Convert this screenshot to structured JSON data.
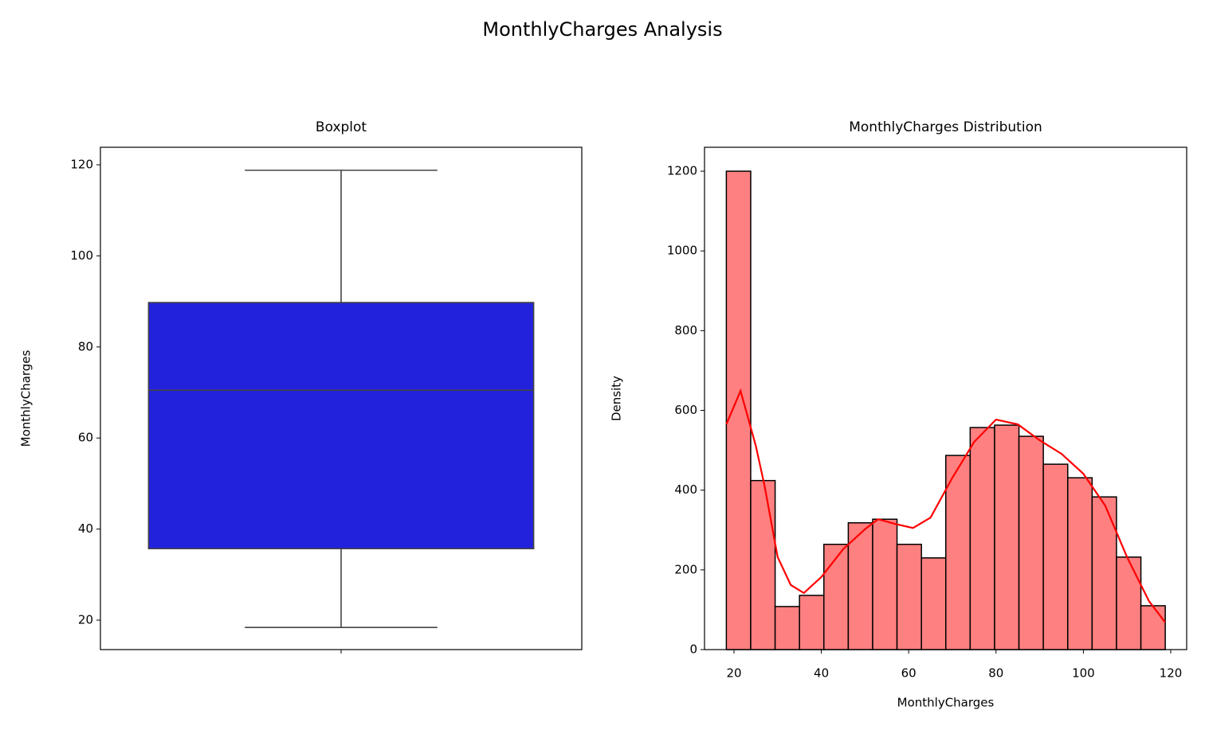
{
  "title": "MonthlyCharges Analysis",
  "chart_data": [
    {
      "type": "box",
      "title": "Boxplot",
      "ylabel": "MonthlyCharges",
      "categories": [
        null
      ],
      "whislo": [
        18.4
      ],
      "q1": [
        35.7
      ],
      "med": [
        70.5
      ],
      "q3": [
        89.75
      ],
      "whishi": [
        118.8
      ],
      "color": "#2222dd",
      "ylim": [
        13.53,
        123.85
      ],
      "yticks": [
        20,
        40,
        60,
        80,
        100,
        120
      ]
    },
    {
      "type": "histogram",
      "title": "MonthlyCharges Distribution",
      "xlabel": "MonthlyCharges",
      "ylabel": "Density",
      "bins": [
        18.25,
        23.83,
        29.42,
        35.0,
        40.58,
        46.17,
        51.75,
        57.33,
        62.92,
        68.5,
        74.08,
        79.67,
        85.25,
        90.83,
        96.42,
        102.0,
        107.58,
        113.17,
        118.75
      ],
      "values": [
        1200,
        424,
        108,
        136,
        264,
        318,
        327,
        264,
        230,
        487,
        557,
        563,
        535,
        465,
        431,
        383,
        232,
        110
      ],
      "color": "#ff8080",
      "edgecolor": "#000000",
      "kde": {
        "color": "#ff0000",
        "x": [
          18.25,
          21.5,
          25,
          27,
          30,
          33,
          36,
          40,
          45,
          50,
          53,
          57,
          61,
          65,
          70,
          75,
          80,
          85,
          90,
          95,
          100,
          105,
          110,
          115,
          118.75
        ],
        "values": [
          565,
          649,
          511,
          411,
          232,
          162,
          142,
          182,
          252,
          302,
          327,
          315,
          305,
          331,
          431,
          521,
          577,
          565,
          525,
          491,
          441,
          361,
          232,
          122,
          68
        ]
      },
      "xlim": [
        13.25,
        123.65
      ],
      "xticks": [
        20,
        40,
        60,
        80,
        100,
        120
      ],
      "ylim": [
        0,
        1260
      ],
      "yticks": [
        0,
        200,
        400,
        600,
        800,
        1000,
        1200
      ]
    }
  ]
}
